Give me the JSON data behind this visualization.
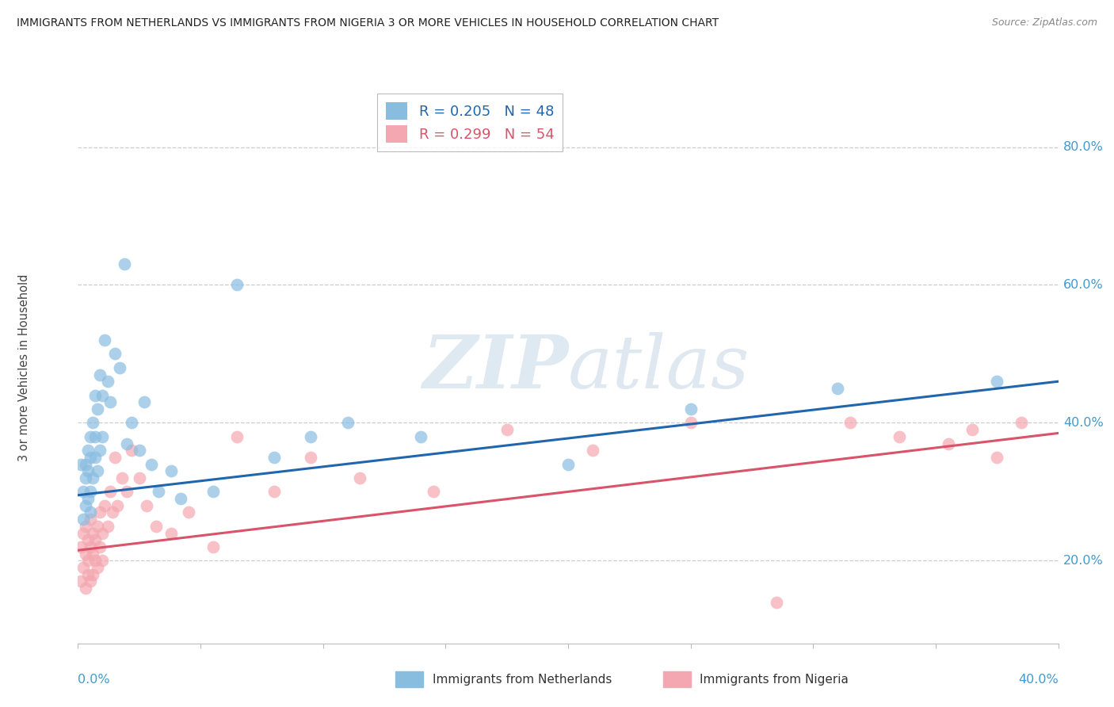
{
  "title": "IMMIGRANTS FROM NETHERLANDS VS IMMIGRANTS FROM NIGERIA 3 OR MORE VEHICLES IN HOUSEHOLD CORRELATION CHART",
  "source": "Source: ZipAtlas.com",
  "ylabel": "3 or more Vehicles in Household",
  "x_lim": [
    0.0,
    0.4
  ],
  "y_lim": [
    0.08,
    0.88
  ],
  "legend_blue_r": "R = 0.205",
  "legend_blue_n": "N = 48",
  "legend_pink_r": "R = 0.299",
  "legend_pink_n": "N = 54",
  "blue_color": "#89bde0",
  "pink_color": "#f4a7b0",
  "blue_line_color": "#2166ac",
  "pink_line_color": "#d9536a",
  "watermark": "ZIPatlas",
  "netherlands_x": [
    0.001,
    0.002,
    0.002,
    0.003,
    0.003,
    0.003,
    0.004,
    0.004,
    0.004,
    0.005,
    0.005,
    0.005,
    0.005,
    0.006,
    0.006,
    0.007,
    0.007,
    0.007,
    0.008,
    0.008,
    0.009,
    0.009,
    0.01,
    0.01,
    0.011,
    0.012,
    0.013,
    0.015,
    0.017,
    0.019,
    0.02,
    0.022,
    0.025,
    0.027,
    0.03,
    0.033,
    0.038,
    0.042,
    0.055,
    0.065,
    0.08,
    0.095,
    0.11,
    0.14,
    0.2,
    0.25,
    0.31,
    0.375
  ],
  "netherlands_y": [
    0.34,
    0.3,
    0.26,
    0.34,
    0.28,
    0.32,
    0.36,
    0.29,
    0.33,
    0.38,
    0.3,
    0.35,
    0.27,
    0.4,
    0.32,
    0.44,
    0.38,
    0.35,
    0.42,
    0.33,
    0.47,
    0.36,
    0.44,
    0.38,
    0.52,
    0.46,
    0.43,
    0.5,
    0.48,
    0.63,
    0.37,
    0.4,
    0.36,
    0.43,
    0.34,
    0.3,
    0.33,
    0.29,
    0.3,
    0.6,
    0.35,
    0.38,
    0.4,
    0.38,
    0.34,
    0.42,
    0.45,
    0.46
  ],
  "nigeria_x": [
    0.001,
    0.001,
    0.002,
    0.002,
    0.003,
    0.003,
    0.003,
    0.004,
    0.004,
    0.004,
    0.005,
    0.005,
    0.005,
    0.006,
    0.006,
    0.006,
    0.007,
    0.007,
    0.008,
    0.008,
    0.009,
    0.009,
    0.01,
    0.01,
    0.011,
    0.012,
    0.013,
    0.014,
    0.015,
    0.016,
    0.018,
    0.02,
    0.022,
    0.025,
    0.028,
    0.032,
    0.038,
    0.045,
    0.055,
    0.065,
    0.08,
    0.095,
    0.115,
    0.145,
    0.175,
    0.21,
    0.25,
    0.285,
    0.315,
    0.335,
    0.355,
    0.365,
    0.375,
    0.385
  ],
  "nigeria_y": [
    0.22,
    0.17,
    0.19,
    0.24,
    0.21,
    0.16,
    0.25,
    0.2,
    0.23,
    0.18,
    0.22,
    0.17,
    0.26,
    0.21,
    0.18,
    0.24,
    0.2,
    0.23,
    0.25,
    0.19,
    0.22,
    0.27,
    0.24,
    0.2,
    0.28,
    0.25,
    0.3,
    0.27,
    0.35,
    0.28,
    0.32,
    0.3,
    0.36,
    0.32,
    0.28,
    0.25,
    0.24,
    0.27,
    0.22,
    0.38,
    0.3,
    0.35,
    0.32,
    0.3,
    0.39,
    0.36,
    0.4,
    0.14,
    0.4,
    0.38,
    0.37,
    0.39,
    0.35,
    0.4
  ],
  "blue_line_x0": 0.0,
  "blue_line_y0": 0.295,
  "blue_line_x1": 0.4,
  "blue_line_y1": 0.46,
  "pink_line_x0": 0.0,
  "pink_line_y0": 0.215,
  "pink_line_x1": 0.4,
  "pink_line_y1": 0.385
}
